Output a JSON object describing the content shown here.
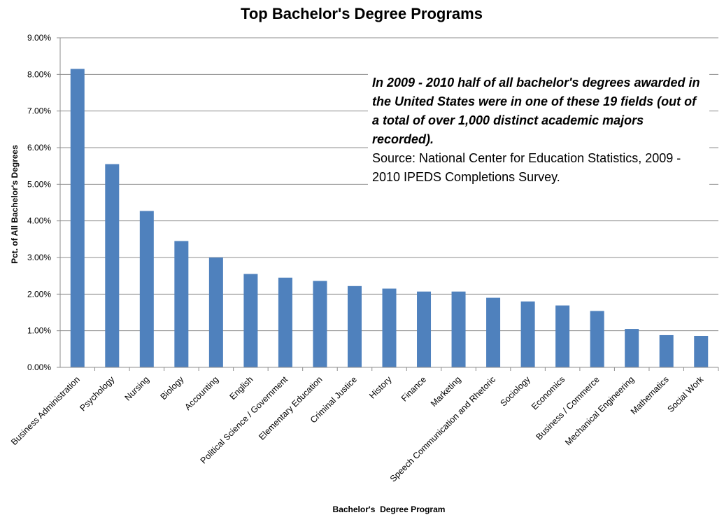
{
  "chart_data": {
    "type": "bar",
    "title": "Top Bachelor's Degree Programs",
    "xlabel": "Bachelor's  Degree Program",
    "ylabel": "Pct. of All Bachelor's Degrees",
    "ylim": [
      0,
      9
    ],
    "yticks": [
      "0.00%",
      "1.00%",
      "2.00%",
      "3.00%",
      "4.00%",
      "5.00%",
      "6.00%",
      "7.00%",
      "8.00%",
      "9.00%"
    ],
    "grid": true,
    "legend": "none",
    "bar_color": "#4f81bd",
    "categories": [
      "Business Administration",
      "Psychology",
      "Nursing",
      "Biology",
      "Accounting",
      "English",
      "Political Science / Government",
      "Elementary Education",
      "Criminal Justice",
      "History",
      "Finance",
      "Marketing",
      "Speech Communication and Rhetoric",
      "Sociology",
      "Economics",
      "Business / Commerce",
      "Mechanical Engineering",
      "Mathematics",
      "Social Work"
    ],
    "values": [
      8.15,
      5.55,
      4.27,
      3.45,
      3.0,
      2.55,
      2.45,
      2.36,
      2.22,
      2.15,
      2.07,
      2.07,
      1.9,
      1.8,
      1.69,
      1.54,
      1.05,
      0.88,
      0.86
    ],
    "annotation": {
      "note": "In 2009 - 2010 half of all bachelor's degrees awarded in the United States were in one of these 19 fields (out of a total of over 1,000 distinct academic majors recorded).",
      "source": "Source: National Center for Education Statistics, 2009 - 2010 IPEDS Completions Survey."
    }
  }
}
